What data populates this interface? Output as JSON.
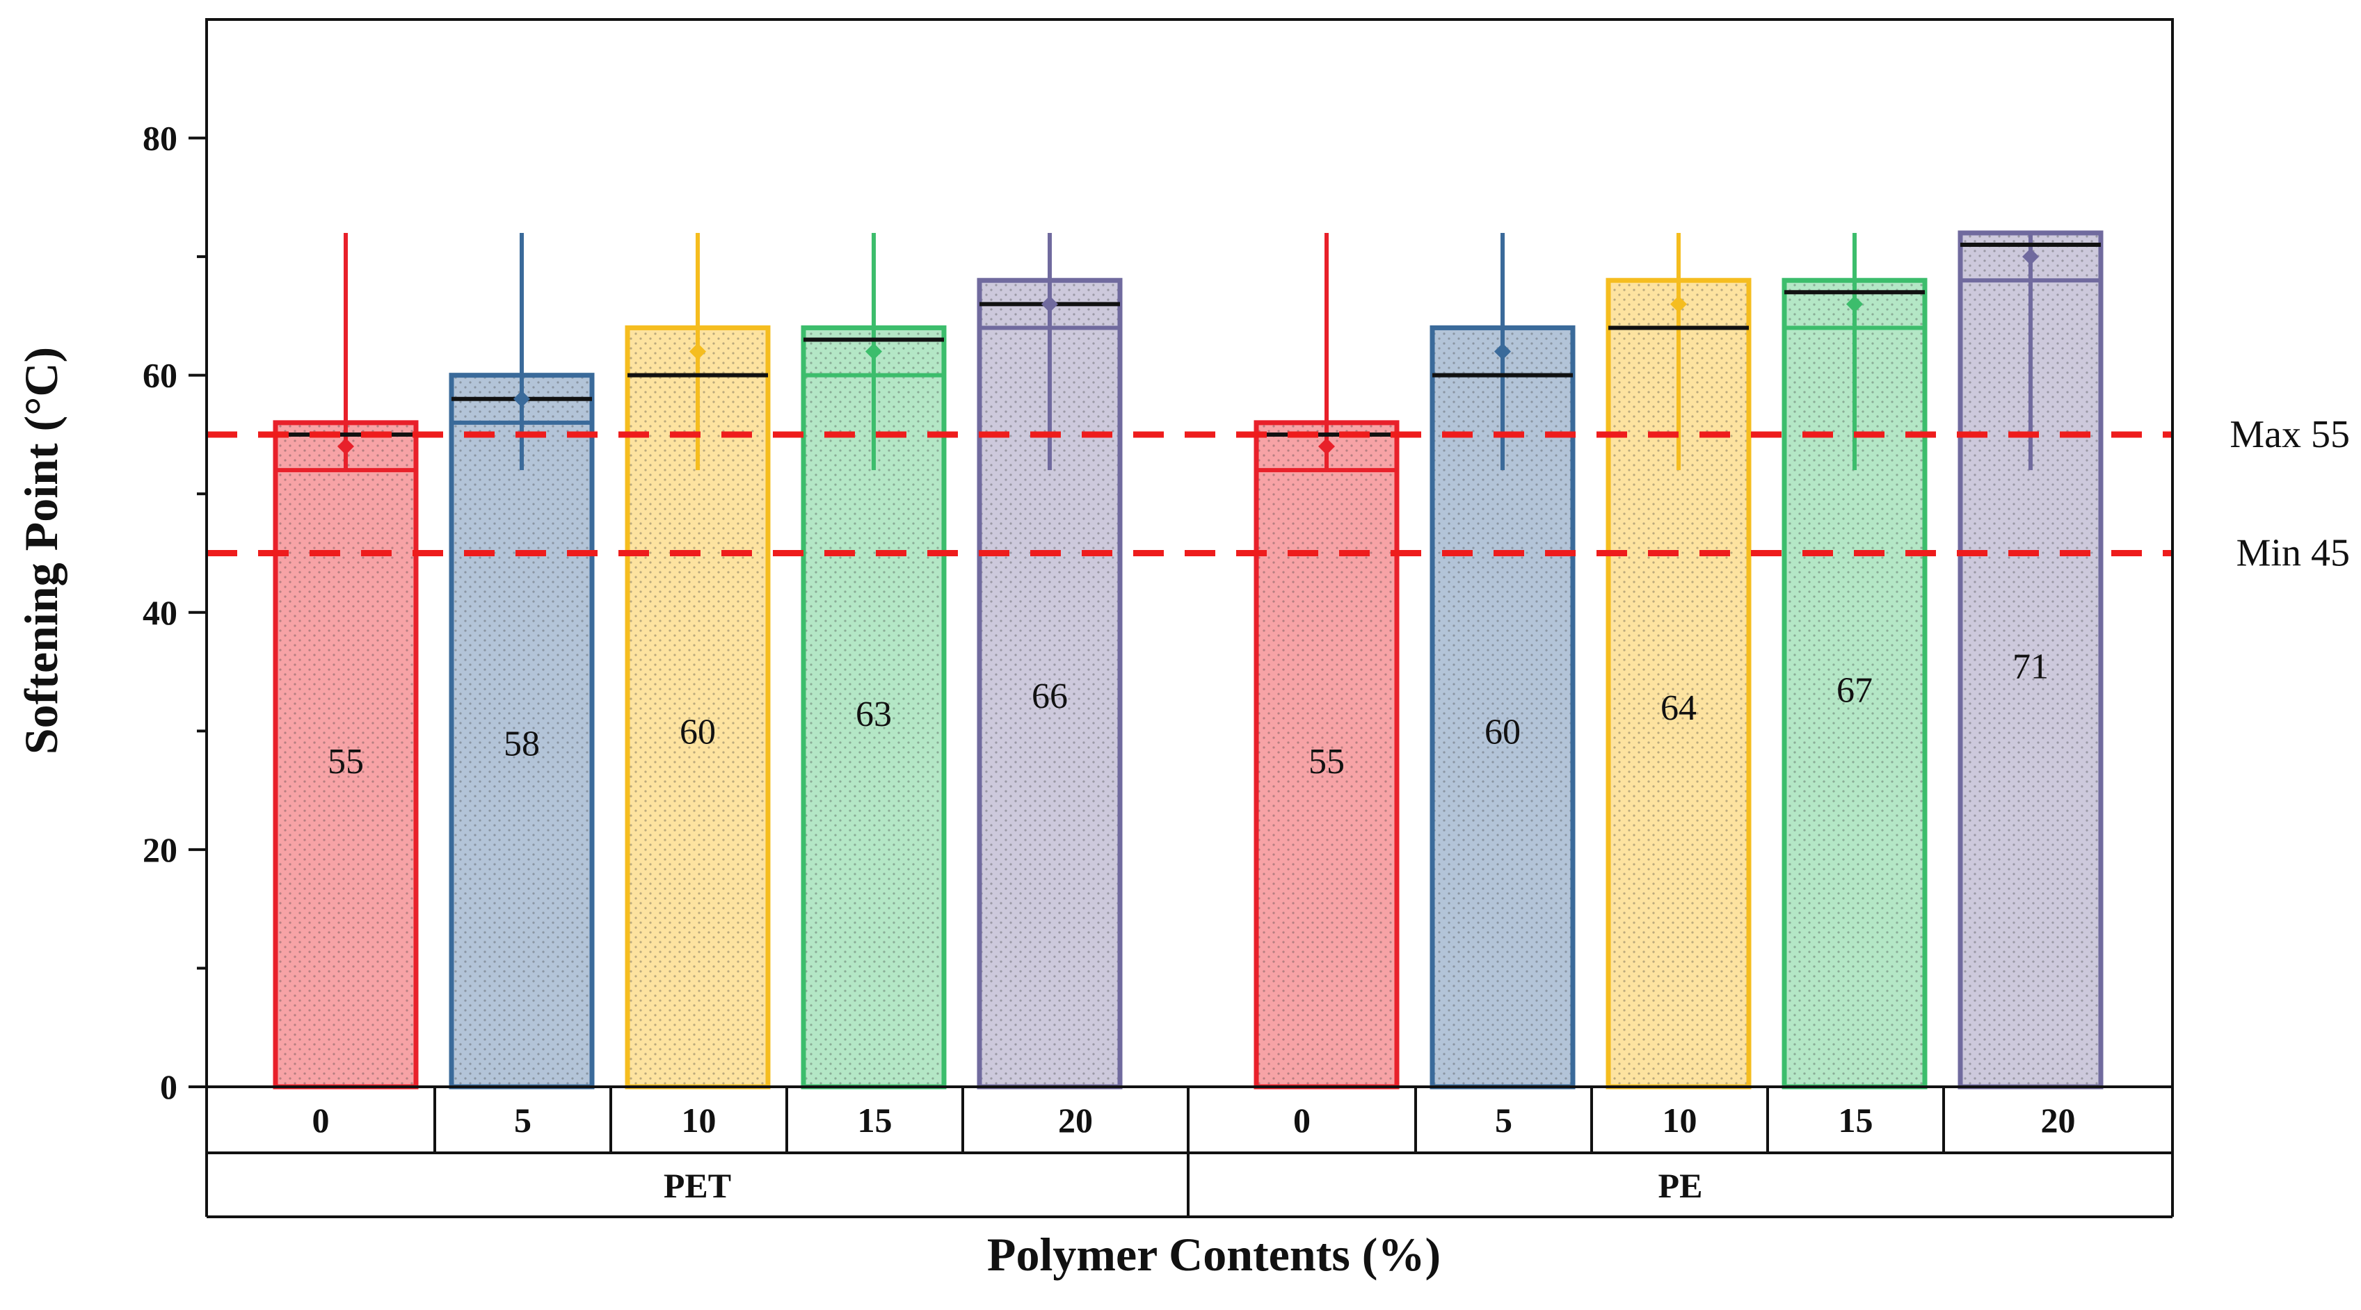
{
  "chart_data": {
    "type": "bar",
    "ylabel": "Softening Point (°C)",
    "xlabel": "Polymer Contents (%)",
    "ylim": [
      0,
      90
    ],
    "yticks": [
      0,
      20,
      40,
      60,
      80
    ],
    "y_tick_labels": [
      "0",
      "20",
      "40",
      "60",
      "80"
    ],
    "y_minor_ticks": [
      10,
      30,
      50,
      70
    ],
    "groups": [
      {
        "name": "PET",
        "categories": [
          "0",
          "5",
          "10",
          "15",
          "20"
        ],
        "values": [
          56,
          60,
          64,
          64,
          68
        ],
        "box_lower": [
          52,
          56,
          60,
          60,
          64
        ],
        "median": [
          55,
          58,
          60,
          63,
          66
        ],
        "mean": [
          54,
          58,
          62,
          62,
          66
        ],
        "whisker_low": [
          52,
          52,
          52,
          52,
          52
        ],
        "whisker_high": [
          72,
          72,
          72,
          72,
          72
        ],
        "labels": [
          "55",
          "58",
          "60",
          "63",
          "66"
        ],
        "label_y": [
          27.5,
          29,
          30,
          31.5,
          33
        ]
      },
      {
        "name": "PE",
        "categories": [
          "0",
          "5",
          "10",
          "15",
          "20"
        ],
        "values": [
          56,
          64,
          68,
          68,
          72
        ],
        "box_lower": [
          52,
          60,
          64,
          64,
          68
        ],
        "median": [
          55,
          60,
          64,
          67,
          71
        ],
        "mean": [
          54,
          62,
          66,
          66,
          70
        ],
        "whisker_low": [
          52,
          52,
          52,
          52,
          52
        ],
        "whisker_high": [
          72,
          72,
          72,
          72,
          72
        ],
        "labels": [
          "55",
          "60",
          "64",
          "67",
          "71"
        ],
        "label_y": [
          27.5,
          30,
          32,
          33.5,
          35.5
        ]
      }
    ],
    "colors": {
      "stroke": [
        "#e8202a",
        "#3a6a9a",
        "#f5bd1f",
        "#3cbd6c",
        "#706a9e"
      ],
      "fill": [
        "#f7a3a6",
        "#b3c4d8",
        "#fde3a0",
        "#b4e7c6",
        "#cdc9dc"
      ]
    },
    "reference_lines": [
      {
        "value": 55,
        "label": "Max 55",
        "color": "#ee1c1c"
      },
      {
        "value": 45,
        "label": "Min 45",
        "color": "#ee1c1c"
      }
    ]
  }
}
